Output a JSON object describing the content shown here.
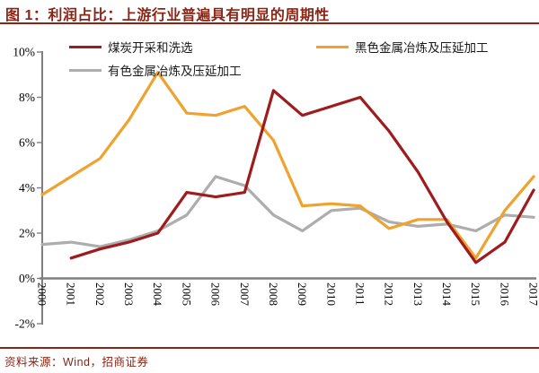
{
  "figure": {
    "title": "图 1：利润占比：上游行业普遍具有明显的周期性"
  },
  "footer": {
    "source_label": "资料来源：Wind，招商证券"
  },
  "colors": {
    "accent_red": "#8a2414",
    "axis_gray": "#7f7f7f",
    "tick_text": "#000000"
  },
  "chart_data": {
    "type": "line",
    "title": "利润占比：上游行业普遍具有明显的周期性",
    "x": [
      2000,
      2001,
      2002,
      2003,
      2004,
      2005,
      2006,
      2007,
      2008,
      2009,
      2010,
      2011,
      2012,
      2013,
      2014,
      2015,
      2016,
      2017
    ],
    "series": [
      {
        "name": "煤炭开采和洗选",
        "color": "#9e1b1e",
        "values": [
          null,
          0.9,
          1.3,
          1.6,
          2.0,
          3.8,
          3.6,
          3.8,
          8.3,
          7.2,
          7.6,
          8.0,
          6.5,
          4.7,
          2.5,
          0.7,
          1.6,
          3.9
        ]
      },
      {
        "name": "黑色金属冶炼及压延加工",
        "color": "#f0a22e",
        "values": [
          3.7,
          4.5,
          5.3,
          7.0,
          9.1,
          7.3,
          7.2,
          7.6,
          6.1,
          3.2,
          3.3,
          3.2,
          2.2,
          2.6,
          2.6,
          0.9,
          3.0,
          4.5
        ]
      },
      {
        "name": "有色金属冶炼及压延加工",
        "color": "#adadad",
        "values": [
          1.5,
          1.6,
          1.4,
          1.7,
          2.1,
          2.8,
          4.5,
          4.1,
          2.8,
          2.1,
          3.0,
          3.1,
          2.5,
          2.3,
          2.4,
          2.1,
          2.8,
          2.7
        ]
      }
    ],
    "ylim": [
      -2,
      10
    ],
    "y_tick_values": [
      10,
      8,
      6,
      4,
      2,
      0,
      -2
    ],
    "y_tick_labels": [
      "10%",
      "8%",
      "6%",
      "4%",
      "2%",
      "0%",
      "-2%"
    ],
    "unit": "percent",
    "grid": false,
    "legend_position": "top"
  }
}
